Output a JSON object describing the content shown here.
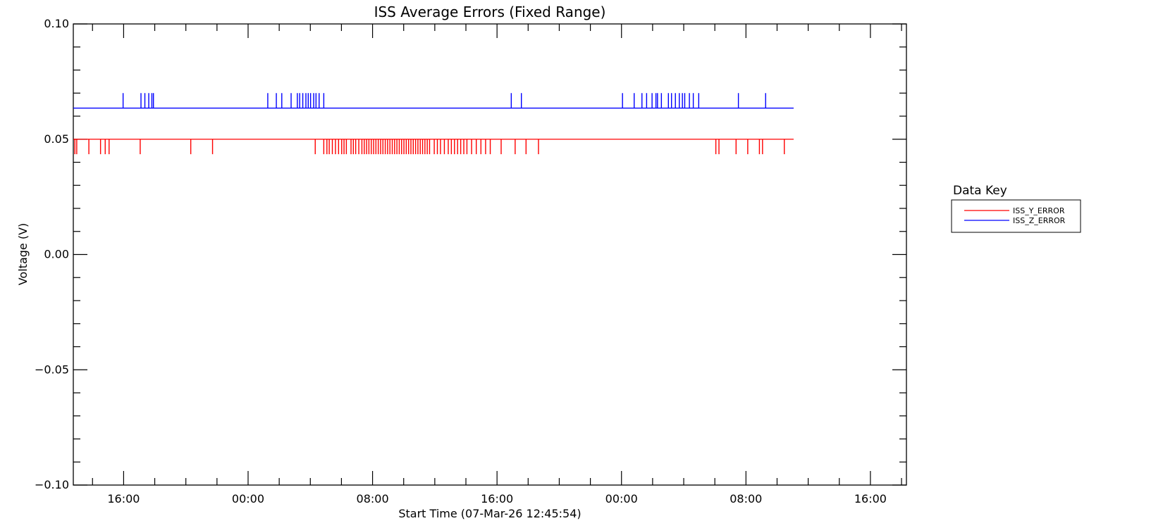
{
  "chart_data": {
    "type": "line",
    "title": "ISS Average Errors (Fixed Range)",
    "xlabel": "Start Time (07-Mar-26 12:45:54)",
    "ylabel": "Voltage (V)",
    "ylim": [
      -0.1,
      0.1
    ],
    "xlim_hours": [
      0,
      53.55
    ],
    "grid": false,
    "legend_title": "Data Key",
    "legend_position": "right",
    "y_ticks": [
      {
        "value": 0.1,
        "label": "0.10"
      },
      {
        "value": 0.05,
        "label": "0.05"
      },
      {
        "value": 0.0,
        "label": "0.00"
      },
      {
        "value": -0.05,
        "label": "−0.05"
      },
      {
        "value": -0.1,
        "label": "−0.10"
      }
    ],
    "y_minor_step": 0.01,
    "x_ticks": [
      {
        "value": 3.235,
        "label": "16:00"
      },
      {
        "value": 11.235,
        "label": "00:00"
      },
      {
        "value": 19.235,
        "label": "08:00"
      },
      {
        "value": 27.235,
        "label": "16:00"
      },
      {
        "value": 35.235,
        "label": "00:00"
      },
      {
        "value": 43.235,
        "label": "08:00"
      },
      {
        "value": 51.235,
        "label": "16:00"
      }
    ],
    "x_minor_step": 2,
    "x_minor_start": 1.235,
    "series": [
      {
        "name": "ISS_Y_ERROR",
        "color": "#ff0000",
        "baseline": 0.05,
        "spike_value": 0.0435,
        "x_start": 0,
        "x_end": 46.3,
        "spikes": [
          0.1,
          0.22,
          1.0,
          1.75,
          2.05,
          2.3,
          4.3,
          7.55,
          8.95,
          15.55,
          16.1,
          16.3,
          16.45,
          16.65,
          16.85,
          17.05,
          17.25,
          17.4,
          17.55,
          17.85,
          18.0,
          18.15,
          18.35,
          18.55,
          18.7,
          18.85,
          19.0,
          19.15,
          19.3,
          19.45,
          19.6,
          19.75,
          19.9,
          20.05,
          20.2,
          20.35,
          20.5,
          20.65,
          20.8,
          20.95,
          21.1,
          21.25,
          21.4,
          21.55,
          21.7,
          21.85,
          22.0,
          22.15,
          22.3,
          22.45,
          22.6,
          22.75,
          22.9,
          23.2,
          23.4,
          23.6,
          23.85,
          24.1,
          24.3,
          24.5,
          24.7,
          24.9,
          25.1,
          25.3,
          25.6,
          25.9,
          26.2,
          26.5,
          26.8,
          27.5,
          28.4,
          29.1,
          29.9,
          41.3,
          41.5,
          42.6,
          43.35,
          44.1,
          44.3,
          45.7
        ],
        "spike_style": "down"
      },
      {
        "name": "ISS_Z_ERROR",
        "color": "#0000ff",
        "baseline": 0.0635,
        "spike_value": 0.07,
        "x_start": 0,
        "x_end": 46.3,
        "spikes": [
          3.2,
          4.35,
          4.6,
          4.85,
          5.05,
          5.15,
          12.5,
          13.05,
          13.4,
          14.0,
          14.4,
          14.55,
          14.75,
          14.95,
          15.1,
          15.25,
          15.45,
          15.6,
          15.8,
          16.1,
          28.15,
          28.8,
          35.3,
          36.05,
          36.55,
          36.85,
          37.2,
          37.45,
          37.55,
          37.8,
          38.25,
          38.45,
          38.7,
          38.95,
          39.15,
          39.3,
          39.6,
          39.85,
          40.2,
          42.75,
          44.5
        ],
        "spike_style": "up"
      }
    ]
  }
}
